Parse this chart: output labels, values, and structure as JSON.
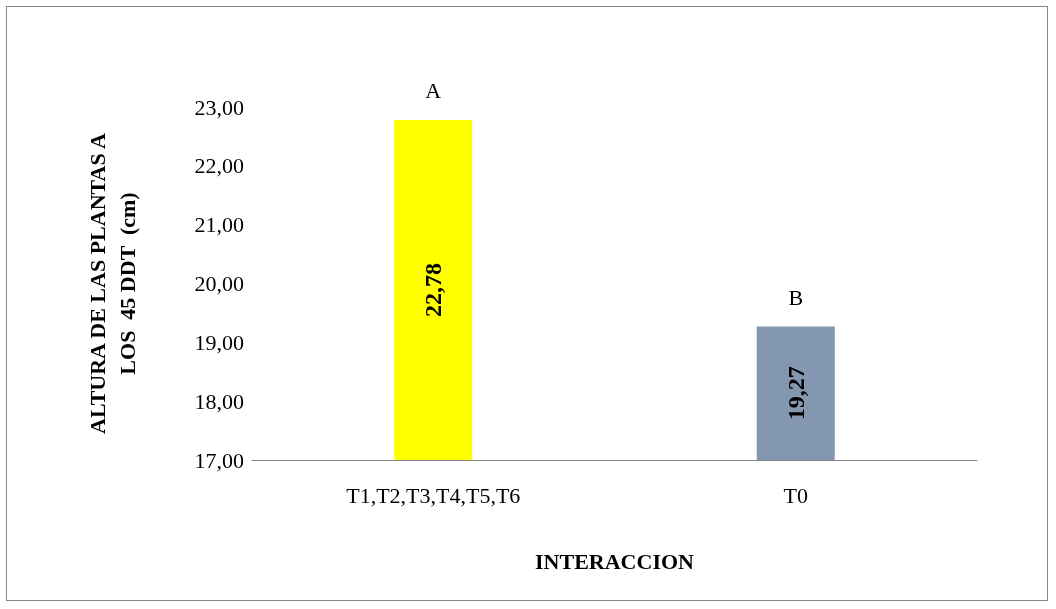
{
  "chart_data": {
    "type": "bar",
    "xlabel": "INTERACCION",
    "ylabel": "ALTURA DE LAS PLANTAS A\nLOS  45 DDT  (cm)",
    "categories": [
      "T1,T2,T3,T4,T5,T6",
      "T0"
    ],
    "values": [
      22.78,
      19.27
    ],
    "colors": [
      "#ffff00",
      "#8497b0"
    ],
    "value_labels": [
      "22,78",
      "19,27"
    ],
    "annotations": [
      {
        "text": "A",
        "x": "T1,T2,T3,T4,T5,T6",
        "y": 22.78
      },
      {
        "text": "B",
        "x": "T0",
        "y": 19.27
      }
    ],
    "ylim": [
      17,
      23
    ],
    "yticks": [
      {
        "value": 17,
        "label": "17,00"
      },
      {
        "value": 18,
        "label": "18,00"
      },
      {
        "value": 19,
        "label": "19,00"
      },
      {
        "value": 20,
        "label": "20,00"
      },
      {
        "value": 21,
        "label": "21,00"
      },
      {
        "value": 22,
        "label": "22,00"
      },
      {
        "value": 23,
        "label": "23,00"
      }
    ],
    "grid": false
  }
}
